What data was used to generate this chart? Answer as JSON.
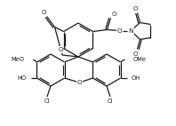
{
  "background_color": "#ffffff",
  "line_color": "#1a1a1a",
  "line_width": 0.9,
  "font_size": 5.2,
  "small_font": 4.8
}
